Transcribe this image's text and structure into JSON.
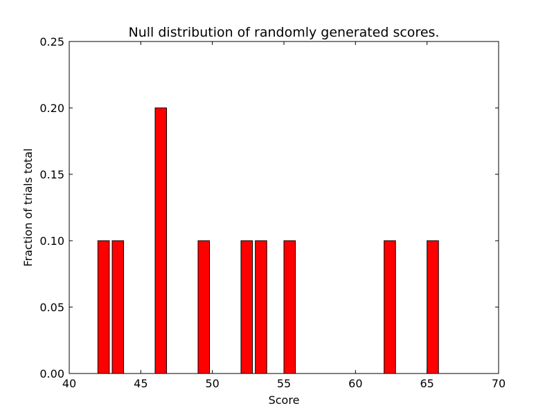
{
  "chart_data": {
    "type": "bar",
    "title": "Null distribution of randomly generated scores.",
    "xlabel": "Score",
    "ylabel": "Fraction of trials total",
    "xlim": [
      40,
      70
    ],
    "ylim": [
      0,
      0.25
    ],
    "xticks": [
      40,
      45,
      50,
      55,
      60,
      65,
      70
    ],
    "yticks": [
      0.0,
      0.05,
      0.1,
      0.15,
      0.2,
      0.25
    ],
    "ytick_labels": [
      "0.00",
      "0.05",
      "0.10",
      "0.15",
      "0.20",
      "0.25"
    ],
    "grid": false,
    "bar_color": "#ff0000",
    "edge_color": "#000000",
    "bar_width": 0.8,
    "bars": [
      {
        "x": 42,
        "value": 0.1
      },
      {
        "x": 43,
        "value": 0.1
      },
      {
        "x": 46,
        "value": 0.2
      },
      {
        "x": 49,
        "value": 0.1
      },
      {
        "x": 52,
        "value": 0.1
      },
      {
        "x": 53,
        "value": 0.1
      },
      {
        "x": 55,
        "value": 0.1
      },
      {
        "x": 62,
        "value": 0.1
      },
      {
        "x": 65,
        "value": 0.1
      }
    ]
  }
}
